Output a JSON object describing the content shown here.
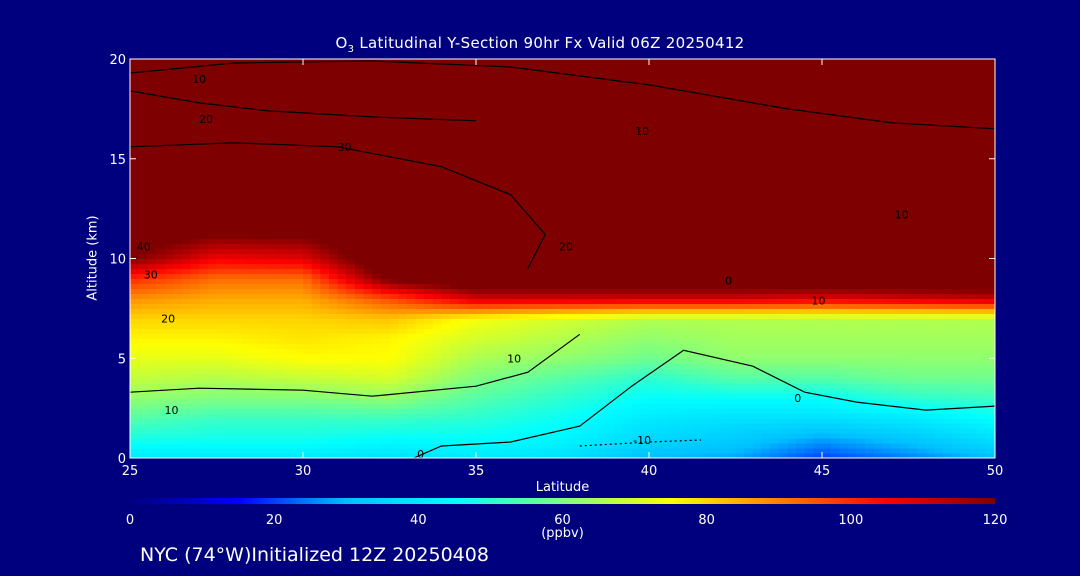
{
  "title_prefix": "O",
  "title_sub": "3",
  "title_rest": " Latitudinal Y-Section 90hr  Fx Valid 06Z 20250412",
  "footer": "NYC (74°W)Initialized 12Z 20250408",
  "colors": {
    "background": "#00007f",
    "axes": "#ffffff",
    "contour": "#000000",
    "colormap": [
      "#00007f",
      "#0000ff",
      "#00bfff",
      "#00ffff",
      "#7fff7f",
      "#ffff00",
      "#ff7f00",
      "#ff0000",
      "#7f0000"
    ]
  },
  "chart_data": {
    "type": "heatmap",
    "title": "O3 Latitudinal Y-Section 90hr  Fx Valid 06Z 20250412",
    "xlabel": "Latitude",
    "ylabel": "Altitude (km)",
    "xlim": [
      25,
      50
    ],
    "ylim": [
      0,
      20
    ],
    "xticks": [
      25,
      30,
      35,
      40,
      45,
      50
    ],
    "yticks": [
      0,
      5,
      10,
      15,
      20
    ],
    "colorbar": {
      "min": 0,
      "max": 120,
      "ticks": [
        0,
        20,
        40,
        60,
        80,
        100,
        120
      ],
      "label": "(ppbv)"
    },
    "grid_lat": [
      25,
      27.5,
      30,
      32.5,
      35,
      37.5,
      40,
      42.5,
      45,
      47.5,
      50
    ],
    "grid_alt": [
      0,
      1,
      2,
      3,
      4,
      5,
      6,
      7,
      8,
      9,
      10,
      12,
      14,
      17,
      20
    ],
    "ozone_ppbv": [
      [
        40,
        40,
        40,
        38,
        40,
        38,
        30,
        28,
        20,
        25,
        30
      ],
      [
        48,
        47,
        47,
        45,
        45,
        43,
        36,
        33,
        28,
        32,
        38
      ],
      [
        55,
        52,
        52,
        52,
        50,
        46,
        40,
        38,
        38,
        40,
        45
      ],
      [
        62,
        60,
        60,
        62,
        55,
        50,
        45,
        45,
        45,
        50,
        52
      ],
      [
        68,
        66,
        68,
        70,
        60,
        55,
        50,
        55,
        55,
        58,
        58
      ],
      [
        72,
        72,
        75,
        75,
        65,
        62,
        58,
        62,
        62,
        62,
        62
      ],
      [
        76,
        76,
        78,
        76,
        70,
        66,
        62,
        64,
        64,
        64,
        64
      ],
      [
        80,
        80,
        80,
        82,
        74,
        70,
        66,
        66,
        66,
        66,
        66
      ],
      [
        88,
        85,
        85,
        96,
        110,
        110,
        110,
        110,
        108,
        110,
        112
      ],
      [
        100,
        92,
        92,
        122,
        130,
        130,
        130,
        130,
        130,
        130,
        130
      ],
      [
        120,
        106,
        108,
        130,
        130,
        130,
        130,
        130,
        130,
        130,
        130
      ],
      [
        130,
        130,
        130,
        130,
        130,
        130,
        130,
        130,
        130,
        130,
        130
      ],
      [
        130,
        130,
        130,
        130,
        130,
        130,
        130,
        130,
        130,
        130,
        130
      ],
      [
        130,
        130,
        130,
        130,
        130,
        130,
        130,
        130,
        130,
        130,
        130
      ],
      [
        130,
        130,
        130,
        130,
        130,
        130,
        130,
        130,
        130,
        130,
        130
      ]
    ],
    "contours": [
      {
        "label": "10",
        "dashed": false,
        "points": [
          [
            25,
            19.3
          ],
          [
            28,
            19.8
          ],
          [
            32,
            19.9
          ],
          [
            36,
            19.6
          ],
          [
            40,
            18.7
          ],
          [
            44,
            17.5
          ],
          [
            47,
            16.8
          ],
          [
            50,
            16.5
          ]
        ]
      },
      {
        "label": "20",
        "dashed": false,
        "points": [
          [
            25,
            18.4
          ],
          [
            27,
            17.8
          ],
          [
            29,
            17.4
          ],
          [
            32,
            17.1
          ],
          [
            35,
            16.9
          ]
        ]
      },
      {
        "label": "30",
        "dashed": false,
        "points": [
          [
            25,
            15.6
          ],
          [
            28,
            15.8
          ],
          [
            31,
            15.6
          ],
          [
            34,
            14.6
          ],
          [
            36,
            13.2
          ],
          [
            37,
            11.2
          ],
          [
            36.5,
            9.5
          ]
        ]
      },
      {
        "label": "10",
        "dashed": false,
        "points": [
          [
            25,
            3.3
          ],
          [
            27,
            3.5
          ],
          [
            30,
            3.4
          ],
          [
            32,
            3.1
          ],
          [
            35,
            3.6
          ],
          [
            36.5,
            4.3
          ],
          [
            38,
            6.2
          ]
        ]
      },
      {
        "label": "-10",
        "dashed": true,
        "points": [
          [
            38,
            0.6
          ],
          [
            40,
            0.8
          ],
          [
            41.5,
            0.9
          ]
        ]
      },
      {
        "label": "0",
        "dashed": false,
        "points": [
          [
            33.2,
            0
          ],
          [
            34,
            0.6
          ],
          [
            36,
            0.8
          ],
          [
            38,
            1.6
          ],
          [
            39.5,
            3.6
          ],
          [
            41,
            5.4
          ],
          [
            43,
            4.6
          ],
          [
            44.5,
            3.3
          ],
          [
            46,
            2.8
          ],
          [
            48,
            2.4
          ],
          [
            50,
            2.6
          ]
        ]
      }
    ],
    "contour_labels": [
      {
        "text": "10",
        "lat": 27,
        "alt": 19.0
      },
      {
        "text": "20",
        "lat": 27.2,
        "alt": 17.0
      },
      {
        "text": "30",
        "lat": 31.2,
        "alt": 15.6
      },
      {
        "text": "10",
        "lat": 39.8,
        "alt": 16.4
      },
      {
        "text": "10",
        "lat": 47.3,
        "alt": 12.2
      },
      {
        "text": "30",
        "lat": 25.6,
        "alt": 9.2
      },
      {
        "text": "40",
        "lat": 25.4,
        "alt": 10.6
      },
      {
        "text": "20",
        "lat": 37.6,
        "alt": 10.6
      },
      {
        "text": "20",
        "lat": 26.1,
        "alt": 7.0
      },
      {
        "text": "10",
        "lat": 44.9,
        "alt": 7.9
      },
      {
        "text": "10",
        "lat": 36.1,
        "alt": 5.0
      },
      {
        "text": "10",
        "lat": 26.2,
        "alt": 2.4
      },
      {
        "text": "0",
        "lat": 44.3,
        "alt": 3.0
      },
      {
        "text": "0",
        "lat": 33.4,
        "alt": 0.2
      },
      {
        "text": "-10",
        "lat": 39.8,
        "alt": 0.9
      },
      {
        "text": "0",
        "lat": 42.3,
        "alt": 8.9
      }
    ]
  }
}
